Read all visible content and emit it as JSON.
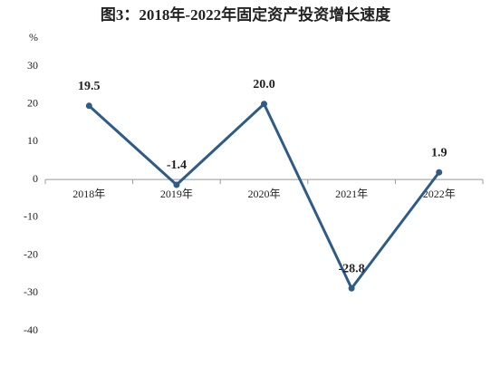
{
  "chart_data": {
    "type": "line",
    "title": "图3：2018年-2022年固定资产投资增长速度",
    "y_unit": "%",
    "categories": [
      "2018年",
      "2019年",
      "2020年",
      "2021年",
      "2022年"
    ],
    "series": [
      {
        "color": "#2e5b87",
        "values": [
          19.5,
          -1.4,
          20.0,
          -28.8,
          1.9
        ],
        "value_labels": [
          "19.5",
          "-1.4",
          "20.0",
          "-28.8",
          "1.9"
        ]
      }
    ],
    "ylim": [
      -40,
      30
    ],
    "yticks": [
      30,
      20,
      10,
      0,
      -10,
      -20,
      -30,
      -40
    ],
    "grid": false
  }
}
